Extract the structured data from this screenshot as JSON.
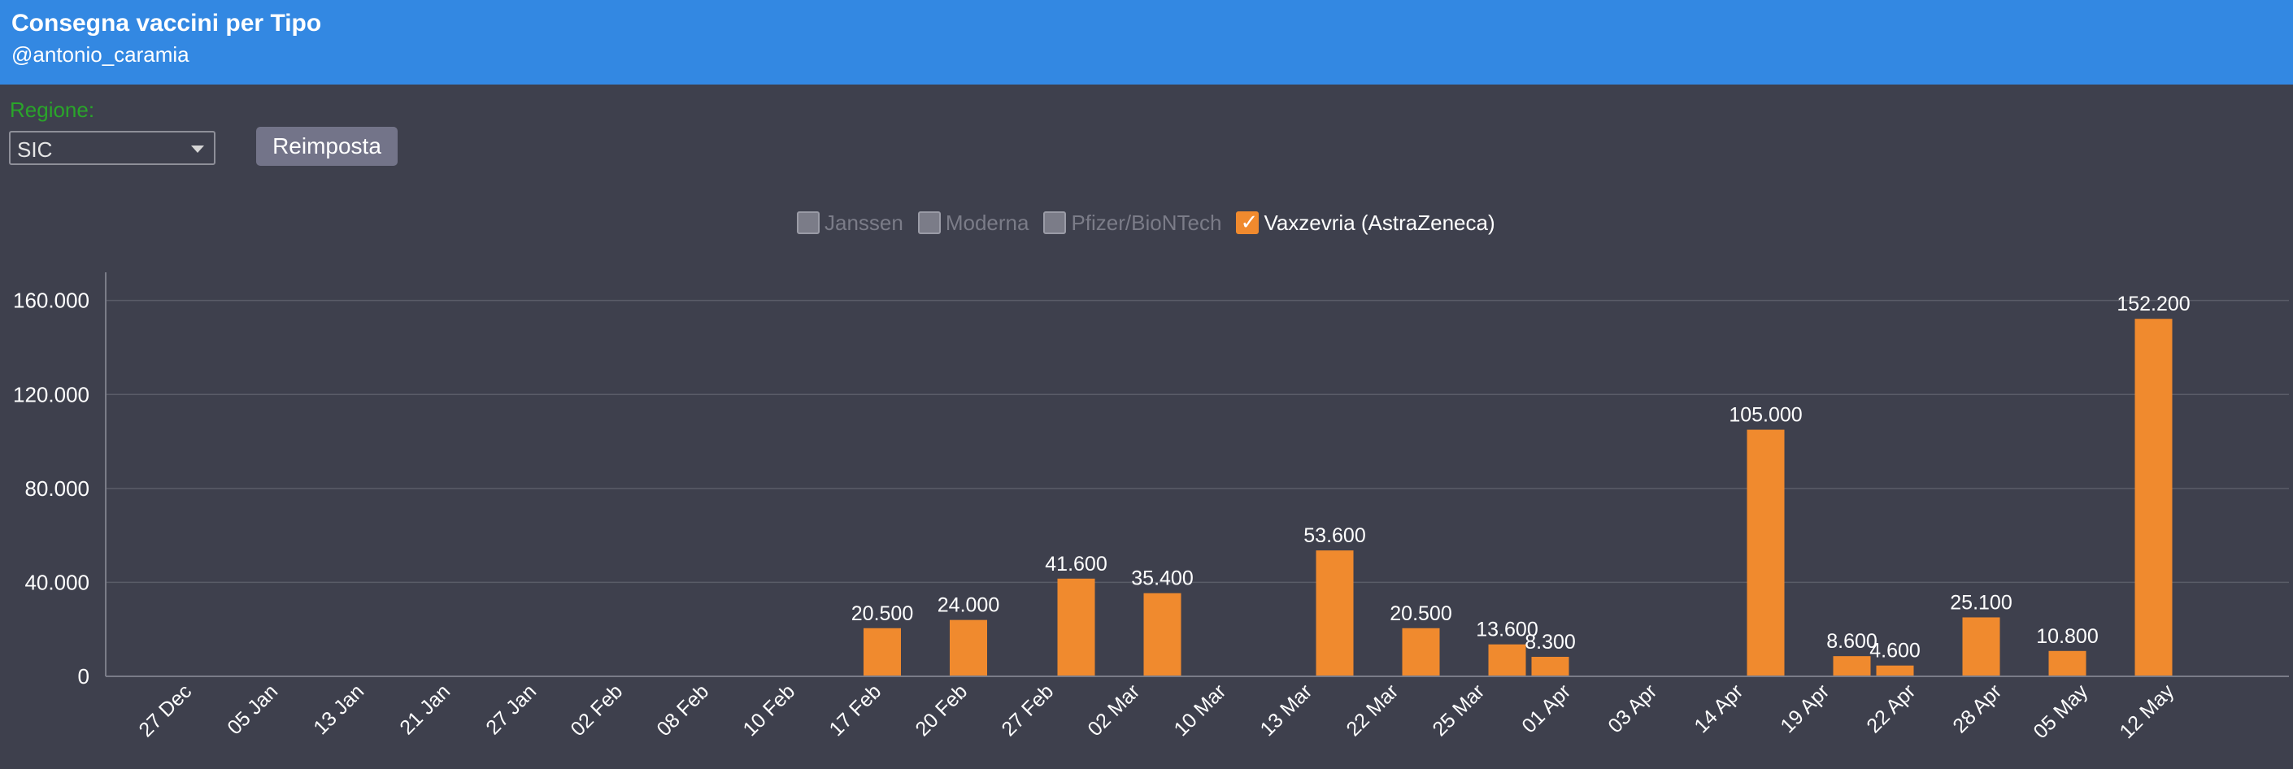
{
  "header": {
    "title": "Consegna vaccini per Tipo",
    "subtitle": "@antonio_caramia"
  },
  "controls": {
    "region_label": "Regione:",
    "region_value": "SIC",
    "reset_label": "Reimposta"
  },
  "colors": {
    "header": "#3388e2",
    "background": "#3e404d",
    "bar": "#f08a2e",
    "region_label": "#2aa52a"
  },
  "legend": [
    {
      "name": "Janssen",
      "checked": false
    },
    {
      "name": "Moderna",
      "checked": false
    },
    {
      "name": "Pfizer/BioNTech",
      "checked": false
    },
    {
      "name": "Vaxzevria (AstraZeneca)",
      "checked": true
    }
  ],
  "chart_data": {
    "type": "bar",
    "categories": [
      "27 Dec",
      "05 Jan",
      "13 Jan",
      "21 Jan",
      "27 Jan",
      "02 Feb",
      "08 Feb",
      "10 Feb",
      "17 Feb",
      "20 Feb",
      "27 Feb",
      "02 Mar",
      "10 Mar",
      "13 Mar",
      "22 Mar",
      "25 Mar",
      "01 Apr",
      "03 Apr",
      "14 Apr",
      "19 Apr",
      "22 Apr",
      "28 Apr",
      "05 May",
      "12 May"
    ],
    "series": [
      {
        "name": "Vaxzevria (AstraZeneca)",
        "bars": [
          {
            "x": 8.5,
            "value": 20500,
            "label": "20.500"
          },
          {
            "x": 9.5,
            "value": 24000,
            "label": "24.000"
          },
          {
            "x": 10.75,
            "value": 41600,
            "label": "41.600"
          },
          {
            "x": 11.75,
            "value": 35400,
            "label": "35.400"
          },
          {
            "x": 13.75,
            "value": 53600,
            "label": "53.600"
          },
          {
            "x": 14.75,
            "value": 20500,
            "label": "20.500"
          },
          {
            "x": 15.75,
            "value": 13600,
            "label": "13.600"
          },
          {
            "x": 16.25,
            "value": 8300,
            "label": "8.300"
          },
          {
            "x": 18.75,
            "value": 105000,
            "label": "105.000"
          },
          {
            "x": 19.75,
            "value": 8600,
            "label": "8.600"
          },
          {
            "x": 20.25,
            "value": 4600,
            "label": "4.600"
          },
          {
            "x": 21.25,
            "value": 25100,
            "label": "25.100"
          },
          {
            "x": 22.25,
            "value": 10800,
            "label": "10.800"
          },
          {
            "x": 23.25,
            "value": 152200,
            "label": "152.200"
          }
        ]
      }
    ],
    "yticks": [
      {
        "value": 0,
        "label": "0"
      },
      {
        "value": 40000,
        "label": "40.000"
      },
      {
        "value": 80000,
        "label": "80.000"
      },
      {
        "value": 120000,
        "label": "120.000"
      },
      {
        "value": 160000,
        "label": "160.000"
      }
    ],
    "ylim": [
      0,
      172000
    ],
    "grid": true,
    "title": "",
    "xlabel": "",
    "ylabel": ""
  }
}
